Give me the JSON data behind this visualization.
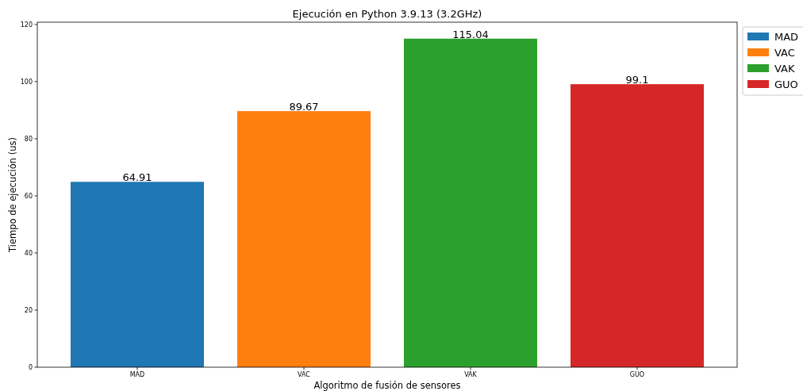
{
  "chart_data": {
    "type": "bar",
    "title": "Ejecución en Python 3.9.13 (3.2GHz)",
    "xlabel": "Algoritmo de fusión de sensores",
    "ylabel": "Tiempo de ejecución (us)",
    "categories": [
      "MAD",
      "VAC",
      "VAK",
      "GUO"
    ],
    "series": [
      {
        "name": "MAD",
        "color": "#1f77b4",
        "values": [
          64.91,
          null,
          null,
          null
        ]
      },
      {
        "name": "VAC",
        "color": "#ff7f0e",
        "values": [
          null,
          89.67,
          null,
          null
        ]
      },
      {
        "name": "VAK",
        "color": "#2ca02c",
        "values": [
          null,
          null,
          115.04,
          null
        ]
      },
      {
        "name": "GUO",
        "color": "#d62728",
        "values": [
          null,
          null,
          null,
          99.1
        ]
      }
    ],
    "ylim": [
      0,
      120.8
    ],
    "yticks": [
      0,
      20,
      40,
      60,
      80,
      100,
      120
    ],
    "data_labels": true,
    "legend": "top right",
    "grid": false
  }
}
